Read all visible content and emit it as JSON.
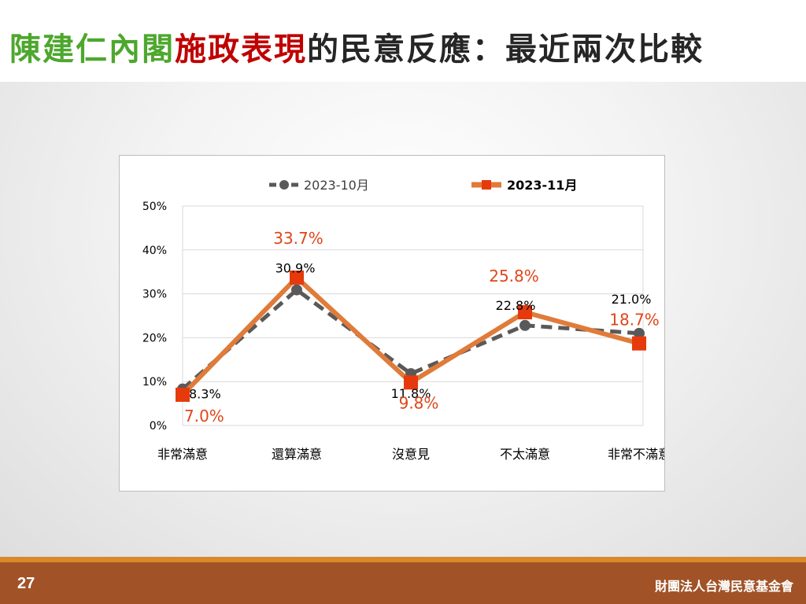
{
  "title": {
    "part1": "陳建仁內閣",
    "part2": "施政表現",
    "part3": "的民意反應：最近兩次比較",
    "colors": [
      "#4ea72e",
      "#c00000",
      "#262626"
    ]
  },
  "footer": {
    "page_number": "27",
    "organization": "財團法人台灣民意基金會"
  },
  "chart_data": {
    "type": "line",
    "categories": [
      "非常滿意",
      "還算滿意",
      "沒意見",
      "不太滿意",
      "非常不滿意"
    ],
    "y_ticks": [
      "0%",
      "10%",
      "20%",
      "30%",
      "40%",
      "50%"
    ],
    "ylim": [
      0,
      50
    ],
    "grid": true,
    "legend_position": "top",
    "series": [
      {
        "name": "2023-10月",
        "values": [
          8.3,
          30.9,
          11.8,
          22.8,
          21.0
        ],
        "labels": [
          "8.3%",
          "30.9%",
          "11.8%",
          "22.8%",
          "21.0%"
        ],
        "color": "#595959",
        "style": "dashed",
        "marker": "circle"
      },
      {
        "name": "2023-11月",
        "values": [
          7.0,
          33.7,
          9.8,
          25.8,
          18.7
        ],
        "labels": [
          "7.0%",
          "33.7%",
          "9.8%",
          "25.8%",
          "18.7%"
        ],
        "color": "#e07b39",
        "marker_color": "#e63a0d",
        "label_color": "#e0461a",
        "style": "solid",
        "marker": "square"
      }
    ]
  }
}
